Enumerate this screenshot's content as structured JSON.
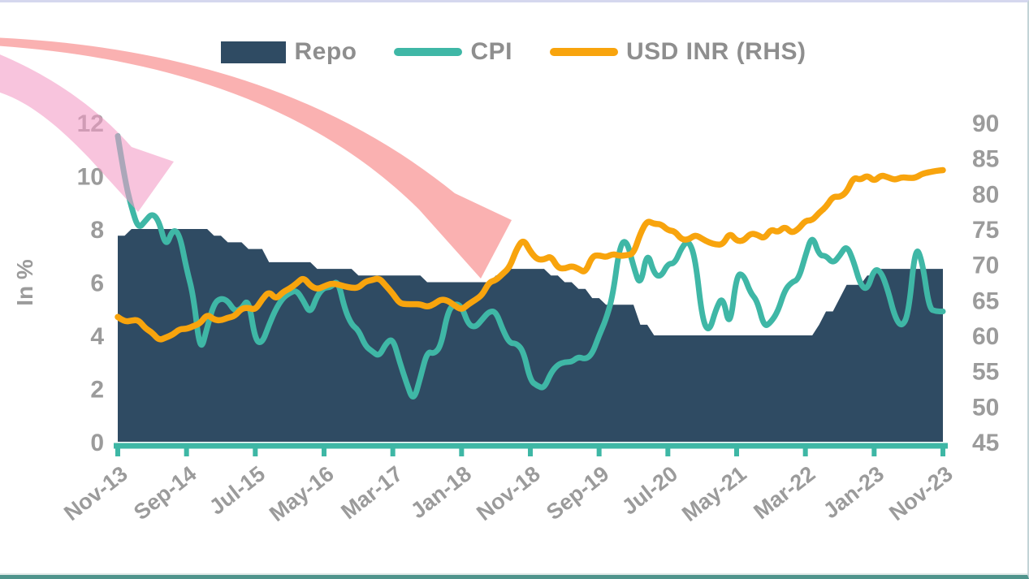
{
  "legend": {
    "items": [
      {
        "label": "Repo",
        "swatch": "area-rect"
      },
      {
        "label": "CPI",
        "swatch": "line"
      },
      {
        "label": "USD INR (RHS)",
        "swatch": "line"
      }
    ]
  },
  "y_left": {
    "title": "In %",
    "tick_values": [
      0,
      2,
      4,
      6,
      8,
      10,
      12
    ]
  },
  "y_right": {
    "tick_values": [
      45,
      50,
      55,
      60,
      65,
      70,
      75,
      80,
      85,
      90
    ]
  },
  "colors": {
    "repo_area": "#2f4b63",
    "cpi_line": "#3fb7a6",
    "usd_inr_line": "#f8a40d",
    "x_axis_line": "#3eb7a5",
    "axis_text": "#9b9b9b",
    "legend_text": "#8e8e8e",
    "pink_arrow": "rgba(243,157,199,0.6)",
    "salmon_arrow": "rgba(247,120,120,0.58)"
  },
  "annotations": {
    "pink_arrow_fill": "rgba(243,157,199,0.6)",
    "salmon_arrow_fill": "rgba(247,120,120,0.58)"
  },
  "chart_data": {
    "type": "combo",
    "x_start": "Nov-13",
    "x_end": "Nov-23",
    "x_interval": "1 month",
    "x_tick_labels": [
      "Nov-13",
      "Sep-14",
      "Jul-15",
      "May-16",
      "Mar-17",
      "Jan-18",
      "Nov-18",
      "Sep-19",
      "Jul-20",
      "May-21",
      "Mar-22",
      "Jan-23",
      "Nov-23"
    ],
    "x_tick_month_indexes": [
      0,
      10,
      20,
      30,
      40,
      50,
      60,
      70,
      80,
      90,
      100,
      110,
      120
    ],
    "ylim_left": [
      0,
      12
    ],
    "ylim_right": [
      45,
      90
    ],
    "ylabel_left": "In %",
    "grid": false,
    "legend_position": "top",
    "series": [
      {
        "name": "Repo",
        "type": "area",
        "axis": "left",
        "color": "#2f4b63",
        "values": [
          7.75,
          7.75,
          8,
          8,
          8,
          8,
          8,
          8,
          8,
          8,
          8,
          8,
          8,
          8,
          7.75,
          7.75,
          7.5,
          7.5,
          7.5,
          7.25,
          7.25,
          7.25,
          6.75,
          6.75,
          6.75,
          6.75,
          6.75,
          6.75,
          6.75,
          6.5,
          6.5,
          6.5,
          6.5,
          6.5,
          6.5,
          6.25,
          6.25,
          6.25,
          6.25,
          6.25,
          6.25,
          6.25,
          6.25,
          6.25,
          6.25,
          6,
          6,
          6,
          6,
          6,
          6,
          6,
          6,
          6,
          6,
          6.25,
          6.25,
          6.5,
          6.5,
          6.5,
          6.5,
          6.5,
          6.5,
          6.25,
          6.25,
          6,
          6,
          5.75,
          5.75,
          5.4,
          5.4,
          5.15,
          5.15,
          5.15,
          5.15,
          5.15,
          4.4,
          4.4,
          4,
          4,
          4,
          4,
          4,
          4,
          4,
          4,
          4,
          4,
          4,
          4,
          4,
          4,
          4,
          4,
          4,
          4,
          4,
          4,
          4,
          4,
          4,
          4,
          4.4,
          4.9,
          4.9,
          5.4,
          5.9,
          5.9,
          5.9,
          6.25,
          6.25,
          6.5,
          6.5,
          6.5,
          6.5,
          6.5,
          6.5,
          6.5,
          6.5,
          6.5,
          6.5
        ]
      },
      {
        "name": "CPI",
        "type": "line",
        "axis": "left",
        "color": "#3fb7a6",
        "values": [
          11.5,
          9.9,
          8.8,
          8.0,
          8.3,
          8.6,
          8.3,
          7.3,
          8.0,
          7.8,
          6.5,
          5.5,
          3.3,
          4.3,
          5.2,
          5.4,
          5.3,
          4.9,
          5.0,
          5.4,
          3.8,
          3.7,
          4.4,
          5.0,
          5.4,
          5.6,
          5.7,
          5.3,
          4.8,
          5.5,
          5.8,
          5.8,
          6.1,
          5.0,
          4.4,
          4.2,
          3.6,
          3.4,
          3.2,
          3.7,
          3.9,
          3.0,
          2.2,
          1.5,
          2.4,
          3.4,
          3.3,
          3.6,
          4.9,
          5.2,
          5.1,
          4.4,
          4.3,
          4.6,
          4.9,
          4.9,
          4.2,
          3.7,
          3.7,
          3.4,
          2.3,
          2.1,
          2.0,
          2.6,
          2.9,
          3.0,
          3.0,
          3.2,
          3.1,
          3.3,
          4.0,
          4.6,
          5.5,
          7.4,
          7.6,
          6.6,
          5.8,
          7.2,
          6.3,
          6.2,
          6.7,
          6.7,
          7.3,
          7.6,
          6.9,
          4.6,
          4.1,
          5.0,
          5.5,
          4.2,
          6.3,
          6.3,
          5.6,
          5.3,
          4.3,
          4.5,
          4.9,
          5.7,
          6.0,
          6.1,
          7.0,
          7.8,
          7.0,
          7.0,
          6.7,
          7.0,
          7.4,
          6.8,
          5.9,
          5.7,
          6.5,
          6.4,
          5.7,
          4.7,
          4.3,
          4.8,
          7.4,
          6.8,
          5.0,
          4.9,
          4.9
        ]
      },
      {
        "name": "USD INR (RHS)",
        "type": "line",
        "axis": "right",
        "color": "#f8a40d",
        "values": [
          62.6,
          61.9,
          62.1,
          62.2,
          61.0,
          60.4,
          59.3,
          59.7,
          60.1,
          60.9,
          60.9,
          61.3,
          61.7,
          63.0,
          62.2,
          62.1,
          62.5,
          62.7,
          63.8,
          63.9,
          63.6,
          65.1,
          66.2,
          65.1,
          66.1,
          66.6,
          67.3,
          68.2,
          67.0,
          66.5,
          66.9,
          67.3,
          67.2,
          66.9,
          66.7,
          66.7,
          67.6,
          67.8,
          68.1,
          67.0,
          65.9,
          64.5,
          64.4,
          64.4,
          64.4,
          64.0,
          64.4,
          65.1,
          64.9,
          64.2,
          63.6,
          64.4,
          65.0,
          65.7,
          67.5,
          67.8,
          68.7,
          69.6,
          72.2,
          73.6,
          71.8,
          70.7,
          70.7,
          71.2,
          69.5,
          69.4,
          69.8,
          69.4,
          68.8,
          71.2,
          71.3,
          71.0,
          71.5,
          71.2,
          71.3,
          71.5,
          74.4,
          76.2,
          75.7,
          75.7,
          74.8,
          74.7,
          73.5,
          73.5,
          74.2,
          73.6,
          73.1,
          72.8,
          72.8,
          74.5,
          73.3,
          73.3,
          74.4,
          74.2,
          73.6,
          75.0,
          74.5,
          75.4,
          74.4,
          75.0,
          76.2,
          76.2,
          77.3,
          78.1,
          79.6,
          79.5,
          80.2,
          82.3,
          81.9,
          82.6,
          81.7,
          82.6,
          82.3,
          81.9,
          82.3,
          82.2,
          82.2,
          82.8,
          83.0,
          83.2,
          83.3
        ]
      }
    ]
  }
}
